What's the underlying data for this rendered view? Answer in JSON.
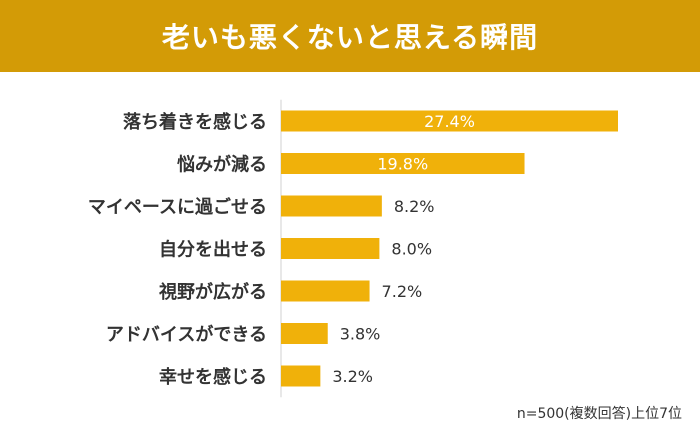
{
  "title": "老いも悪くないと思える瞬間",
  "note": "n=500(複数回答)上位7位",
  "colors": {
    "banner": "#d39b06",
    "bar": "#f0b10a",
    "text": "#333333",
    "axis": "#d0d0d0"
  },
  "chart_data": {
    "type": "bar",
    "orientation": "horizontal",
    "categories": [
      "落ち着きを感じる",
      "悩みが減る",
      "マイペースに過ごせる",
      "自分を出せる",
      "視野が広がる",
      "アドバイスができる",
      "幸せを感じる"
    ],
    "values": [
      27.4,
      19.8,
      8.2,
      8.0,
      7.2,
      3.8,
      3.2
    ],
    "value_labels": [
      "27.4%",
      "19.8%",
      "8.2%",
      "8.0%",
      "7.2%",
      "3.8%",
      "3.2%"
    ],
    "unit": "%",
    "xlim": [
      0,
      30
    ],
    "grid": false
  }
}
